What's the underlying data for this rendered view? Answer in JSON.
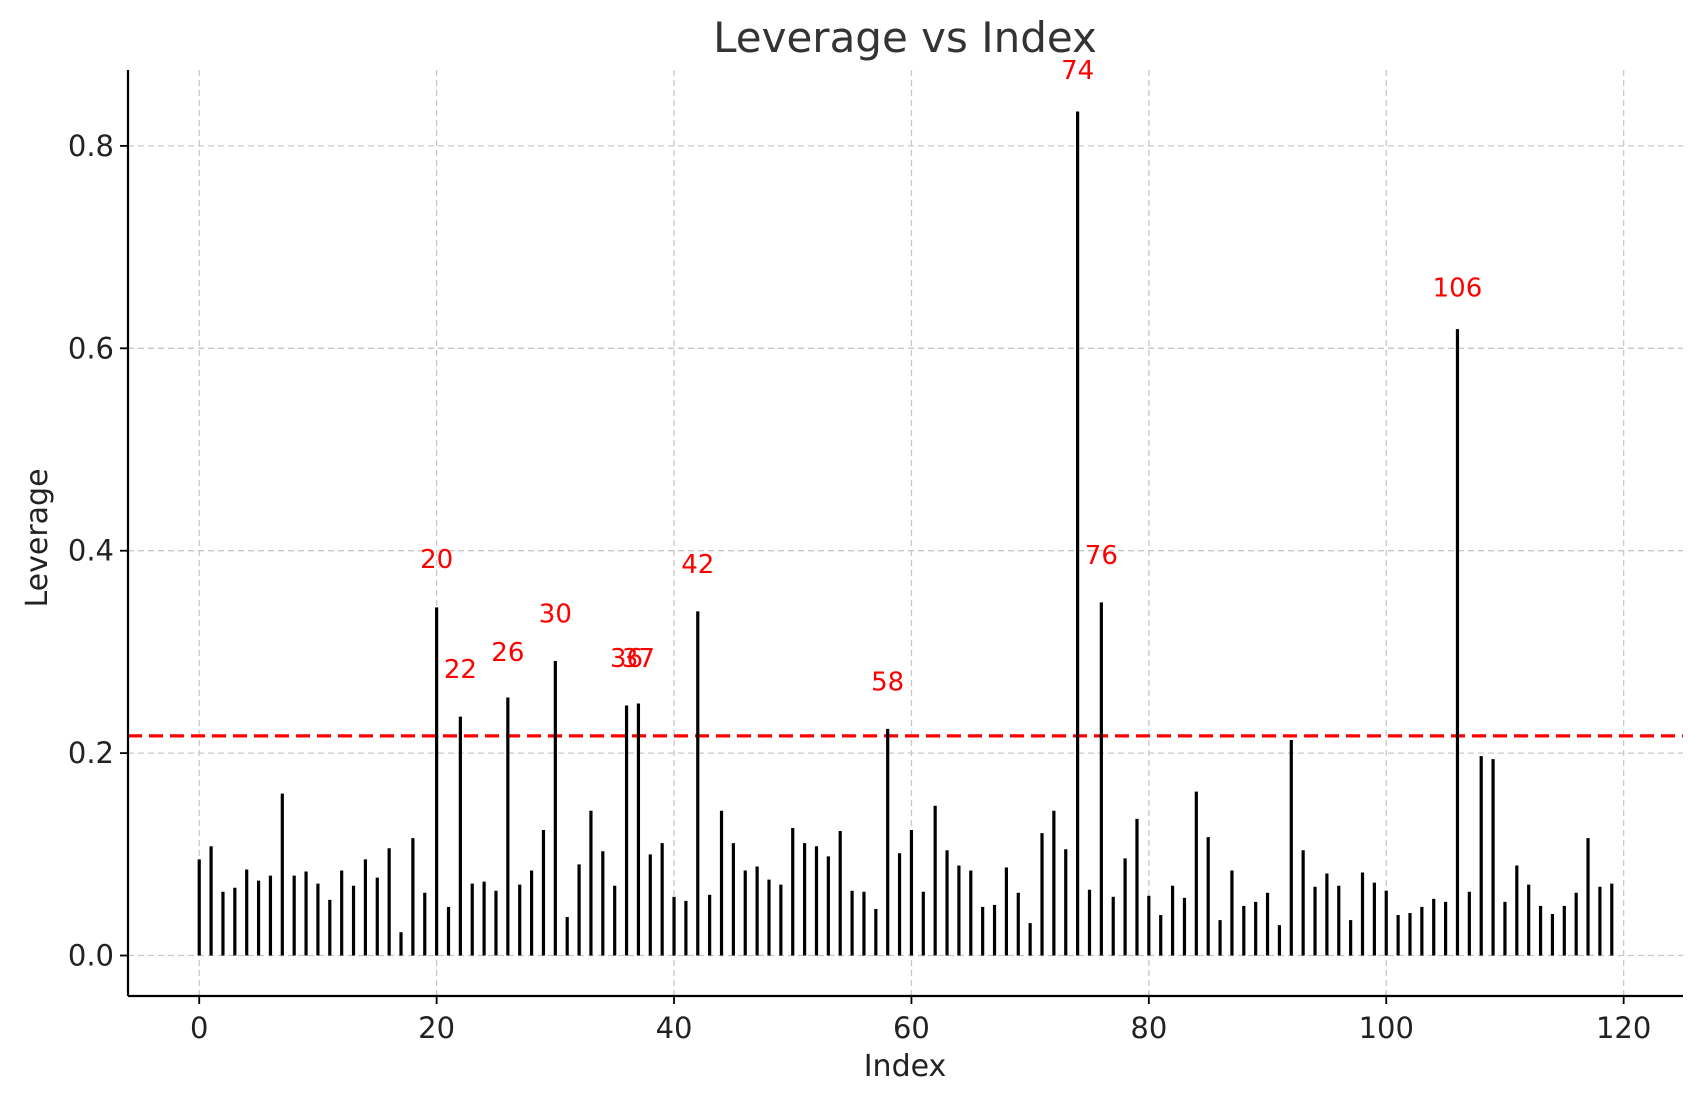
{
  "chart_data": {
    "type": "bar",
    "title": "Leverage vs Index",
    "xlabel": "Index",
    "ylabel": "Leverage",
    "xlim": [
      -6,
      125
    ],
    "ylim": [
      -0.04,
      0.875
    ],
    "xticks": [
      0,
      20,
      40,
      60,
      80,
      100,
      120
    ],
    "yticks": [
      0.0,
      0.2,
      0.4,
      0.6,
      0.8
    ],
    "ytick_labels": [
      "0.0",
      "0.2",
      "0.4",
      "0.6",
      "0.8"
    ],
    "grid": true,
    "threshold": 0.217,
    "threshold_color": "#ff0000",
    "stem_color": "#000000",
    "annotation_color": "#ff0000",
    "x": [
      0,
      1,
      2,
      3,
      4,
      5,
      6,
      7,
      8,
      9,
      10,
      11,
      12,
      13,
      14,
      15,
      16,
      17,
      18,
      19,
      20,
      21,
      22,
      23,
      24,
      25,
      26,
      27,
      28,
      29,
      30,
      31,
      32,
      33,
      34,
      35,
      36,
      37,
      38,
      39,
      40,
      41,
      42,
      43,
      44,
      45,
      46,
      47,
      48,
      49,
      50,
      51,
      52,
      53,
      54,
      55,
      56,
      57,
      58,
      59,
      60,
      61,
      62,
      63,
      64,
      65,
      66,
      67,
      68,
      69,
      70,
      71,
      72,
      73,
      74,
      75,
      76,
      77,
      78,
      79,
      80,
      81,
      82,
      83,
      84,
      85,
      86,
      87,
      88,
      89,
      90,
      91,
      92,
      93,
      94,
      95,
      96,
      97,
      98,
      99,
      100,
      101,
      102,
      103,
      104,
      105,
      106,
      107,
      108,
      109,
      110,
      111,
      112,
      113,
      114,
      115,
      116,
      117,
      118,
      119
    ],
    "values": [
      0.095,
      0.108,
      0.063,
      0.067,
      0.085,
      0.074,
      0.079,
      0.16,
      0.079,
      0.083,
      0.071,
      0.055,
      0.084,
      0.069,
      0.095,
      0.077,
      0.106,
      0.023,
      0.116,
      0.062,
      0.344,
      0.048,
      0.236,
      0.071,
      0.073,
      0.064,
      0.255,
      0.07,
      0.084,
      0.124,
      0.291,
      0.038,
      0.09,
      0.143,
      0.103,
      0.069,
      0.247,
      0.249,
      0.1,
      0.111,
      0.058,
      0.054,
      0.34,
      0.06,
      0.143,
      0.111,
      0.084,
      0.088,
      0.075,
      0.07,
      0.126,
      0.111,
      0.108,
      0.098,
      0.123,
      0.064,
      0.063,
      0.046,
      0.224,
      0.101,
      0.124,
      0.063,
      0.148,
      0.104,
      0.089,
      0.084,
      0.048,
      0.05,
      0.087,
      0.062,
      0.032,
      0.121,
      0.143,
      0.105,
      0.834,
      0.065,
      0.349,
      0.058,
      0.096,
      0.135,
      0.059,
      0.04,
      0.069,
      0.057,
      0.162,
      0.117,
      0.035,
      0.084,
      0.049,
      0.053,
      0.062,
      0.03,
      0.213,
      0.104,
      0.068,
      0.081,
      0.069,
      0.035,
      0.082,
      0.072,
      0.064,
      0.04,
      0.042,
      0.048,
      0.056,
      0.053,
      0.619,
      0.063,
      0.197,
      0.194,
      0.053,
      0.089,
      0.07,
      0.049,
      0.041,
      0.049,
      0.062,
      0.116,
      0.068,
      0.071
    ],
    "annotations": [
      {
        "x": 20,
        "label": "20",
        "y": 0.383
      },
      {
        "x": 22,
        "label": "22",
        "y": 0.274
      },
      {
        "x": 26,
        "label": "26",
        "y": 0.291
      },
      {
        "x": 30,
        "label": "30",
        "y": 0.329
      },
      {
        "x": 36,
        "label": "36",
        "y": 0.285
      },
      {
        "x": 37,
        "label": "37",
        "y": 0.285
      },
      {
        "x": 42,
        "label": "42",
        "y": 0.378
      },
      {
        "x": 58,
        "label": "58",
        "y": 0.262
      },
      {
        "x": 74,
        "label": "74",
        "y": 0.866
      },
      {
        "x": 76,
        "label": "76",
        "y": 0.387
      },
      {
        "x": 106,
        "label": "106",
        "y": 0.651
      }
    ]
  }
}
